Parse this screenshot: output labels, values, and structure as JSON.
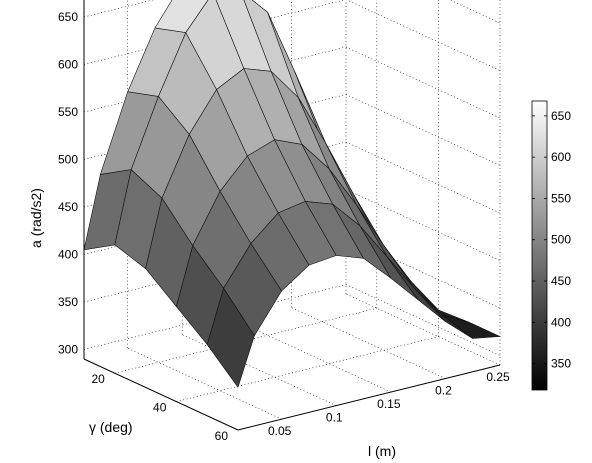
{
  "chart_data": {
    "type": "surface",
    "title": "",
    "xlabel": "l (m)",
    "ylabel": "γ (deg)",
    "zlabel": "a (rad/s2)",
    "x_ticks": [
      "0.05",
      "0.1",
      "0.15",
      "0.2",
      "0.25"
    ],
    "y_ticks": [
      "20",
      "40",
      "60"
    ],
    "z_ticks": [
      "300",
      "350",
      "400",
      "450",
      "500",
      "550",
      "600",
      "650"
    ],
    "xlim": [
      0.01,
      0.25
    ],
    "ylim": [
      10,
      60
    ],
    "zlim": [
      290,
      690
    ],
    "grid": true,
    "colormap": "gray",
    "colorbar": {
      "placement": "right",
      "range": [
        318,
        668
      ],
      "ticks": [
        "350",
        "400",
        "450",
        "500",
        "550",
        "600",
        "650"
      ]
    },
    "gamma_grid": [
      10,
      20,
      30,
      40,
      50,
      60
    ],
    "l_grid": [
      0.01,
      0.025,
      0.05,
      0.075,
      0.1,
      0.125,
      0.15,
      0.175,
      0.2,
      0.225,
      0.25
    ],
    "z_grid": [
      [
        405,
        480,
        560,
        620,
        660,
        668,
        640,
        580,
        510,
        440,
        370
      ],
      [
        425,
        500,
        570,
        630,
        665,
        660,
        630,
        560,
        480,
        410,
        350
      ],
      [
        415,
        485,
        545,
        585,
        600,
        590,
        555,
        500,
        440,
        380,
        330
      ],
      [
        390,
        450,
        500,
        530,
        540,
        528,
        495,
        450,
        400,
        355,
        318
      ],
      [
        365,
        420,
        460,
        485,
        490,
        480,
        450,
        410,
        370,
        335,
        320
      ],
      [
        335,
        385,
        425,
        445,
        448,
        438,
        410,
        380,
        350,
        325,
        320
      ]
    ]
  }
}
